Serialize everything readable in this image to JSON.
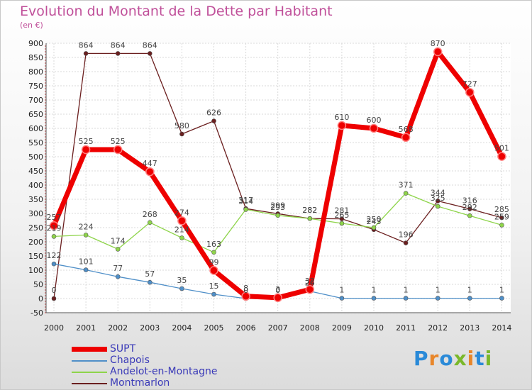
{
  "header": {
    "title": "Evolution du Montant de la Dette par Habitant",
    "subtitle": "(en €)"
  },
  "logo": {
    "text": "Proxiti",
    "colors": [
      "#2a8ad8",
      "#e8862a",
      "#2a8ad8",
      "#7ab82a",
      "#e8862a",
      "#2a8ad8",
      "#7ab82a"
    ]
  },
  "chart_data": {
    "type": "line",
    "title": "Evolution du Montant de la Dette par Habitant",
    "subtitle": "(en €)",
    "x": [
      "2000",
      "2001",
      "2002",
      "2003",
      "2004",
      "2005",
      "2006",
      "2007",
      "2008",
      "2009",
      "2010",
      "2011",
      "2012",
      "2013",
      "2014"
    ],
    "yticks": [
      "-50",
      "0",
      "50",
      "100",
      "150",
      "200",
      "250",
      "300",
      "350",
      "400",
      "450",
      "500",
      "550",
      "600",
      "650",
      "700",
      "750",
      "800",
      "850",
      "900"
    ],
    "ylim": [
      -50,
      900
    ],
    "grid": true,
    "legend_position": "bottom-left",
    "series": [
      {
        "name": "SUPT",
        "color": "#ee0000",
        "values": [
          257,
          525,
          525,
          447,
          274,
          99,
          8,
          3,
          32,
          610,
          600,
          568,
          870,
          727,
          501
        ],
        "labels": [
          "257",
          "525",
          "525",
          "447",
          "274",
          "99",
          "8",
          "3",
          "32",
          "610",
          "600",
          "568",
          "870",
          "727",
          "501"
        ]
      },
      {
        "name": "Chapois",
        "color": "#4f8fc8",
        "values": [
          122,
          101,
          77,
          57,
          35,
          15,
          0,
          0,
          26,
          1,
          1,
          1,
          1,
          1,
          1
        ],
        "labels": [
          "122",
          "101",
          "77",
          "57",
          "35",
          "15",
          "0",
          "0",
          "26",
          "1",
          "1",
          "1",
          "1",
          "1",
          "1"
        ]
      },
      {
        "name": "Andelot-en-Montagne",
        "color": "#8ed44a",
        "values": [
          219,
          224,
          174,
          268,
          214,
          163,
          314,
          293,
          282,
          265,
          250,
          371,
          325,
          292,
          259
        ],
        "labels": [
          "219",
          "224",
          "174",
          "268",
          "214",
          "163",
          "314",
          "293",
          "282",
          "265",
          "250",
          "371",
          "325",
          "292",
          "259"
        ]
      },
      {
        "name": "Montmarlon",
        "color": "#6b1f1f",
        "values": [
          0,
          864,
          864,
          864,
          580,
          626,
          317,
          299,
          282,
          281,
          243,
          196,
          344,
          316,
          285
        ],
        "labels": [
          "0",
          "864",
          "864",
          "864",
          "580",
          "626",
          "317",
          "299",
          "282",
          "281",
          "243",
          "196",
          "344",
          "316",
          "285"
        ]
      }
    ]
  }
}
